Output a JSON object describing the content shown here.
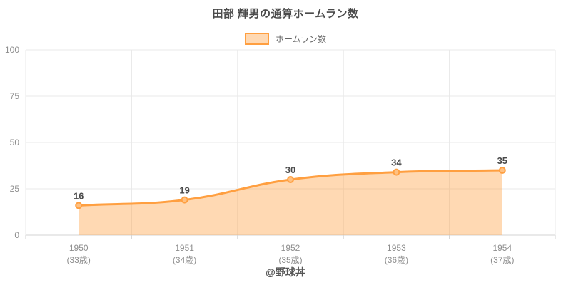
{
  "title": "田部 輝男の通算ホームラン数",
  "legend": {
    "items": [
      {
        "label": "ホームラン数"
      }
    ]
  },
  "footer": {
    "credit": "@野球丼"
  },
  "chart_data": {
    "type": "area",
    "title": "田部 輝男の通算ホームラン数",
    "categories": [
      "1950",
      "1951",
      "1952",
      "1953",
      "1954"
    ],
    "category_sublabels": [
      "(33歳)",
      "(34歳)",
      "(35歳)",
      "(36歳)",
      "(37歳)"
    ],
    "series": [
      {
        "name": "ホームラン数",
        "values": [
          16,
          19,
          30,
          34,
          35
        ]
      }
    ],
    "point_labels": [
      "16",
      "19",
      "30",
      "34",
      "35"
    ],
    "ytick_labels": [
      "0",
      "25",
      "50",
      "75",
      "100"
    ],
    "yticks": [
      0,
      25,
      50,
      75,
      100
    ],
    "ylim": [
      0,
      100
    ],
    "grid": true,
    "smooth": true,
    "legend_position": "top",
    "colors": {
      "line": "#ff9f40",
      "area_fill": "rgba(255,159,64,0.4)",
      "point_fill": "#ffc182",
      "point_stroke": "#ff9f40",
      "grid": "#e8e8e8",
      "axis": "#d3d3d3",
      "tick_text": "#8e8e8e",
      "value_label": "#4a4a4a",
      "title_text": "#4a4a4a",
      "legend_text": "#666666",
      "footer_text": "#555555"
    }
  }
}
